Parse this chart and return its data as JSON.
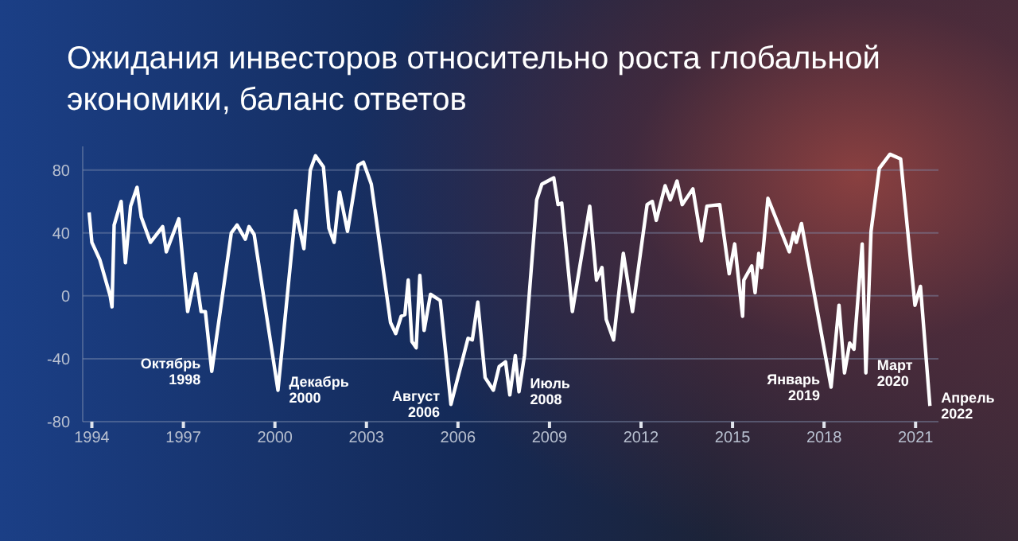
{
  "chart_data": {
    "type": "line",
    "title": "Ожидания инвесторов относительно роста глобальной экономики, баланс ответов",
    "series": [
      {
        "color": "#ffffff",
        "x": [
          1993.91,
          1994.0,
          1994.26,
          1994.6,
          1994.66,
          1994.73,
          1994.96,
          1995.1,
          1995.27,
          1995.48,
          1995.62,
          1995.92,
          1996.32,
          1996.44,
          1996.85,
          1997.14,
          1997.4,
          1997.58,
          1997.72,
          1997.93,
          1998.57,
          1998.76,
          1999.03,
          1999.15,
          1999.32,
          2000.1,
          2000.68,
          2000.95,
          2001.16,
          2001.33,
          2001.59,
          2001.77,
          2001.94,
          2002.12,
          2002.38,
          2002.73,
          2002.9,
          2003.16,
          2003.79,
          2003.96,
          2004.14,
          2004.26,
          2004.37,
          2004.49,
          2004.63,
          2004.75,
          2004.89,
          2005.1,
          2005.42,
          2005.77,
          2006.33,
          2006.47,
          2006.65,
          2006.89,
          2007.16,
          2007.35,
          2007.56,
          2007.7,
          2007.88,
          2008.0,
          2008.18,
          2008.58,
          2008.75,
          2009.14,
          2009.28,
          2009.4,
          2009.75,
          2010.32,
          2010.54,
          2010.72,
          2010.86,
          2011.1,
          2011.42,
          2011.72,
          2012.2,
          2012.37,
          2012.5,
          2012.79,
          2012.96,
          2013.18,
          2013.35,
          2013.7,
          2013.98,
          2014.16,
          2014.58,
          2014.89,
          2015.07,
          2015.33,
          2015.37,
          2015.63,
          2015.74,
          2015.86,
          2015.95,
          2016.16,
          2016.86,
          2017.0,
          2017.09,
          2017.26,
          2018.23,
          2018.49,
          2018.67,
          2018.84,
          2018.98,
          2019.25,
          2019.37,
          2019.54,
          2019.81,
          2020.16,
          2020.51,
          2020.98,
          2021.16,
          2021.47
        ],
        "values": [
          53,
          34,
          23,
          0,
          -7,
          45,
          60,
          21,
          57,
          69,
          50,
          34,
          44,
          28,
          49,
          -10,
          14,
          -10,
          -10,
          -48,
          40,
          45,
          36,
          44,
          39,
          -60,
          54,
          30,
          80,
          89,
          82,
          43,
          34,
          66,
          41,
          83,
          85,
          71,
          -17,
          -24,
          -13,
          -12,
          10,
          -29,
          -33,
          13,
          -22,
          1,
          -3,
          -69,
          -27,
          -28,
          -4,
          -52,
          -60,
          -45,
          -42,
          -63,
          -38,
          -61,
          -38,
          61,
          71,
          75,
          58,
          59,
          -10,
          57,
          10,
          18,
          -15,
          -28,
          27,
          -10,
          58,
          60,
          48,
          70,
          61,
          73,
          58,
          68,
          35,
          57,
          58,
          14,
          33,
          -13,
          10,
          19,
          2,
          27,
          18,
          62,
          28,
          40,
          34,
          46,
          -58,
          -6,
          -49,
          -30,
          -34,
          33,
          -49,
          41,
          81,
          90,
          87,
          -6,
          6,
          -70
        ]
      }
    ],
    "xlim": [
      1993.7,
      2021.75
    ],
    "xticks": [
      1994,
      1997,
      2000,
      2003,
      2006,
      2009,
      2012,
      2015,
      2018,
      2021
    ],
    "ylim": [
      -80,
      95
    ],
    "yticks": [
      -80,
      -40,
      0,
      40,
      80
    ],
    "grid": "y",
    "marker": "none",
    "line_style": "solid",
    "legend": false,
    "annotations": [
      {
        "text": "Октябрь 1998",
        "x": 1997.93,
        "y": -48
      },
      {
        "text": "Декабрь 2000",
        "x": 2000.1,
        "y": -60
      },
      {
        "text": "Август 2006",
        "x": 2005.77,
        "y": -69
      },
      {
        "text": "Июль 2008",
        "x": 2008.0,
        "y": -61
      },
      {
        "text": "Январь 2019",
        "x": 2018.23,
        "y": -58
      },
      {
        "text": "Март 2020",
        "x": 2019.37,
        "y": -49
      },
      {
        "text": "Апрель 2022",
        "x": 2021.47,
        "y": -70
      }
    ]
  }
}
